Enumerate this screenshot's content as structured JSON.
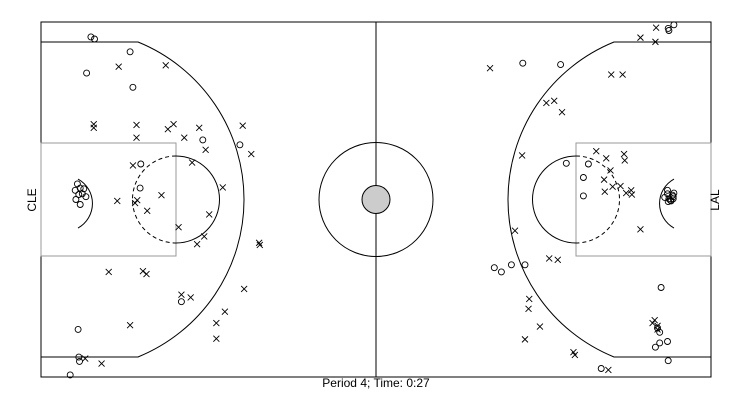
{
  "chart_data": {
    "type": "scatter",
    "title": "Period 4; Time: 0:27",
    "xlim": [
      0,
      94
    ],
    "ylim": [
      0,
      50
    ],
    "left_team": "CLE",
    "right_team": "LAL",
    "markers": {
      "made": "circle",
      "missed": "x"
    },
    "court": {
      "line_color": "#000000",
      "lane_color": "#999999",
      "center_circle_fill": "#cccccc",
      "background": "#ffffff"
    },
    "series": [
      {
        "marker": "circle",
        "points": [
          [
            7.0,
            47.9
          ],
          [
            7.5,
            47.6
          ],
          [
            12.5,
            45.8
          ],
          [
            6.4,
            42.8
          ],
          [
            12.9,
            40.8
          ],
          [
            5.1,
            27.2
          ],
          [
            5.5,
            26.6
          ],
          [
            5.8,
            25.8
          ],
          [
            4.9,
            25.0
          ],
          [
            5.5,
            24.3
          ],
          [
            6.3,
            25.4
          ],
          [
            4.8,
            26.3
          ],
          [
            6.0,
            26.5
          ],
          [
            5.3,
            25.7
          ],
          [
            13.9,
            26.6
          ],
          [
            27.9,
            32.7
          ],
          [
            22.7,
            33.4
          ],
          [
            14.0,
            30.0
          ],
          [
            5.2,
            6.7
          ],
          [
            5.3,
            2.8
          ],
          [
            5.4,
            2.2
          ],
          [
            4.1,
            0.3
          ],
          [
            19.7,
            10.6
          ],
          [
            67.6,
            44.2
          ],
          [
            72.9,
            44.0
          ],
          [
            88.0,
            49.1
          ],
          [
            88.8,
            49.6
          ],
          [
            88.1,
            48.8
          ],
          [
            76.8,
            30.0
          ],
          [
            76.1,
            28.1
          ],
          [
            73.7,
            30.1
          ],
          [
            76.1,
            25.5
          ],
          [
            87.9,
            26.3
          ],
          [
            88.6,
            25.6
          ],
          [
            88.8,
            25.9
          ],
          [
            87.5,
            25.3
          ],
          [
            88.1,
            25.1
          ],
          [
            88.4,
            24.8
          ],
          [
            88.7,
            25.4
          ],
          [
            87.9,
            25.8
          ],
          [
            88.3,
            24.9
          ],
          [
            88.7,
            25.1
          ],
          [
            88.0,
            24.7
          ],
          [
            87.0,
            12.6
          ],
          [
            86.8,
            6.3
          ],
          [
            86.5,
            6.9
          ],
          [
            86.8,
            4.8
          ],
          [
            87.9,
            5.0
          ],
          [
            86.2,
            4.2
          ],
          [
            88.0,
            2.3
          ],
          [
            78.6,
            1.2
          ],
          [
            63.6,
            15.4
          ],
          [
            64.6,
            14.8
          ],
          [
            66.0,
            15.8
          ],
          [
            67.9,
            15.8
          ]
        ]
      },
      {
        "marker": "x",
        "points": [
          [
            10.9,
            43.7
          ],
          [
            17.5,
            43.9
          ],
          [
            7.4,
            35.1
          ],
          [
            7.4,
            35.6
          ],
          [
            13.4,
            35.5
          ],
          [
            13.4,
            33.7
          ],
          [
            17.8,
            34.9
          ],
          [
            20.1,
            33.7
          ],
          [
            18.6,
            35.6
          ],
          [
            22.2,
            35.1
          ],
          [
            23.1,
            32.0
          ],
          [
            28.3,
            35.4
          ],
          [
            21.2,
            30.2
          ],
          [
            12.9,
            29.8
          ],
          [
            25.5,
            26.7
          ],
          [
            29.5,
            31.4
          ],
          [
            13.2,
            24.5
          ],
          [
            13.5,
            24.9
          ],
          [
            10.7,
            24.8
          ],
          [
            14.9,
            23.4
          ],
          [
            16.9,
            25.6
          ],
          [
            23.6,
            22.9
          ],
          [
            19.3,
            21.1
          ],
          [
            22.9,
            19.8
          ],
          [
            21.9,
            18.7
          ],
          [
            30.7,
            18.6
          ],
          [
            30.6,
            18.9
          ],
          [
            14.8,
            14.5
          ],
          [
            14.3,
            14.9
          ],
          [
            9.5,
            14.8
          ],
          [
            19.7,
            11.6
          ],
          [
            21.0,
            11.2
          ],
          [
            28.5,
            12.4
          ],
          [
            25.8,
            9.2
          ],
          [
            24.6,
            7.6
          ],
          [
            24.6,
            5.4
          ],
          [
            12.5,
            7.3
          ],
          [
            6.2,
            2.6
          ],
          [
            8.5,
            1.9
          ],
          [
            84.1,
            47.8
          ],
          [
            86.3,
            49.2
          ],
          [
            86.2,
            47.2
          ],
          [
            80.0,
            42.6
          ],
          [
            81.6,
            42.6
          ],
          [
            63.0,
            43.5
          ],
          [
            70.9,
            38.6
          ],
          [
            72.0,
            38.9
          ],
          [
            73.1,
            37.3
          ],
          [
            67.5,
            31.2
          ],
          [
            77.9,
            31.8
          ],
          [
            79.3,
            30.8
          ],
          [
            81.8,
            31.4
          ],
          [
            81.9,
            30.5
          ],
          [
            79.9,
            29.1
          ],
          [
            79.0,
            27.8
          ],
          [
            79.1,
            26.1
          ],
          [
            80.2,
            26.8
          ],
          [
            81.3,
            26.9
          ],
          [
            82.1,
            25.9
          ],
          [
            82.8,
            26.3
          ],
          [
            82.9,
            25.7
          ],
          [
            66.5,
            20.6
          ],
          [
            84.1,
            20.8
          ],
          [
            71.3,
            16.7
          ],
          [
            72.5,
            16.5
          ],
          [
            68.5,
            11.0
          ],
          [
            68.4,
            9.6
          ],
          [
            70.0,
            7.1
          ],
          [
            67.9,
            5.3
          ],
          [
            74.9,
            3.1
          ],
          [
            74.7,
            3.5
          ],
          [
            79.6,
            1.0
          ],
          [
            86.1,
            8.0
          ],
          [
            86.5,
            6.7
          ],
          [
            85.8,
            7.6
          ],
          [
            86.5,
            7.2
          ]
        ]
      }
    ]
  }
}
